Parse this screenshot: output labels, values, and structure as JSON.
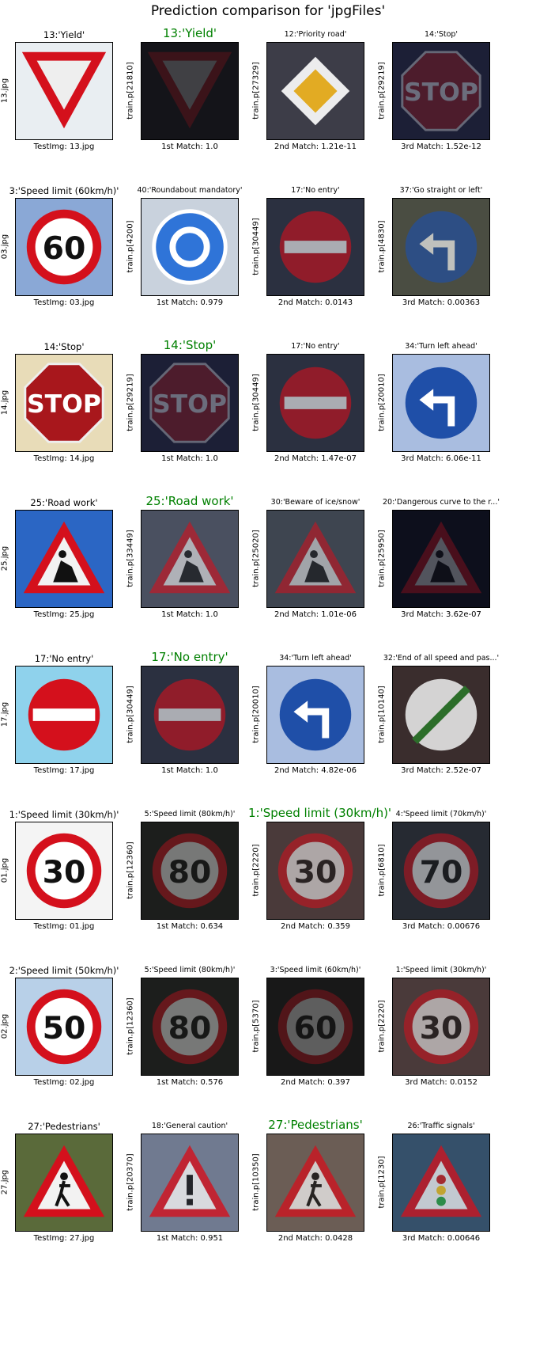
{
  "suptitle": "Prediction comparison for 'jpgFiles'",
  "chart_data": {
    "type": "table",
    "title": "Prediction comparison for 'jpgFiles'",
    "rows": [
      {
        "test_title": "13:'Yield'",
        "test_ylabel": "13.jpg",
        "test_xlabel": "TestImg: 13.jpg",
        "test_sign": "yield",
        "test_bg": "#e9eef2",
        "matches": [
          {
            "title": "13:'Yield'",
            "correct": true,
            "ylabel": "train.p[21810]",
            "xlabel": "1st Match: 1.0",
            "score": 1.0,
            "sign": "yield",
            "bg": "#141419",
            "dim": 0.2
          },
          {
            "title": "12:'Priority road'",
            "correct": false,
            "ylabel": "train.p[27329]",
            "xlabel": "2nd Match: 1.21e-11",
            "score": 1.21e-11,
            "sign": "priority",
            "bg": "#3d3d48",
            "dim": 0.9
          },
          {
            "title": "14:'Stop'",
            "correct": false,
            "ylabel": "train.p[29219]",
            "xlabel": "3rd Match: 1.52e-12",
            "score": 1.52e-12,
            "sign": "stop",
            "bg": "#1c1f36",
            "dim": 0.35
          }
        ]
      },
      {
        "test_title": "3:'Speed limit (60km/h)'",
        "test_ylabel": "03.jpg",
        "test_xlabel": "TestImg: 03.jpg",
        "test_sign": "60",
        "test_bg": "#8aa8d6",
        "matches": [
          {
            "title": "40:'Roundabout mandatory'",
            "correct": false,
            "ylabel": "train.p[4200]",
            "xlabel": "1st Match: 0.979",
            "score": 0.979,
            "sign": "roundabout",
            "bg": "#c9d2dd",
            "dim": 1.0
          },
          {
            "title": "17:'No entry'",
            "correct": false,
            "ylabel": "train.p[30449]",
            "xlabel": "2nd Match: 0.0143",
            "score": 0.0143,
            "sign": "noentry",
            "bg": "#2b3040",
            "dim": 0.6
          },
          {
            "title": "37:'Go straight or left'",
            "correct": false,
            "ylabel": "train.p[4830]",
            "xlabel": "3rd Match: 0.00363",
            "score": 0.00363,
            "sign": "straightleft",
            "bg": "#4a4d42",
            "dim": 0.65
          }
        ]
      },
      {
        "test_title": "14:'Stop'",
        "test_ylabel": "14.jpg",
        "test_xlabel": "TestImg: 14.jpg",
        "test_sign": "stop",
        "test_bg": "#e8dcb8",
        "matches": [
          {
            "title": "14:'Stop'",
            "correct": true,
            "ylabel": "train.p[29219]",
            "xlabel": "1st Match: 1.0",
            "score": 1.0,
            "sign": "stop",
            "bg": "#1c1f36",
            "dim": 0.35
          },
          {
            "title": "17:'No entry'",
            "correct": false,
            "ylabel": "train.p[30449]",
            "xlabel": "2nd Match: 1.47e-07",
            "score": 1.47e-07,
            "sign": "noentry",
            "bg": "#2b3040",
            "dim": 0.6
          },
          {
            "title": "34:'Turn left ahead'",
            "correct": false,
            "ylabel": "train.p[20010]",
            "xlabel": "3rd Match: 6.06e-11",
            "score": 6.06e-11,
            "sign": "turnleft",
            "bg": "#a9bde0",
            "dim": 1.0
          }
        ]
      },
      {
        "test_title": "25:'Road work'",
        "test_ylabel": "25.jpg",
        "test_xlabel": "TestImg: 25.jpg",
        "test_sign": "roadwork",
        "test_bg": "#2b66c4",
        "matches": [
          {
            "title": "25:'Road work'",
            "correct": true,
            "ylabel": "train.p[33449]",
            "xlabel": "1st Match: 1.0",
            "score": 1.0,
            "sign": "roadwork",
            "bg": "#4a5060",
            "dim": 0.6
          },
          {
            "title": "30:'Beware of ice/snow'",
            "correct": false,
            "ylabel": "train.p[25020]",
            "xlabel": "2nd Match: 1.01e-06",
            "score": 1.01e-06,
            "sign": "ice",
            "bg": "#3e4550",
            "dim": 0.55
          },
          {
            "title": "20:'Dangerous curve to the r...'",
            "correct": false,
            "ylabel": "train.p[25950]",
            "xlabel": "3rd Match: 3.62e-07",
            "score": 3.62e-07,
            "sign": "curve",
            "bg": "#0d0f1c",
            "dim": 0.3
          }
        ]
      },
      {
        "test_title": "17:'No entry'",
        "test_ylabel": "17.jpg",
        "test_xlabel": "TestImg: 17.jpg",
        "test_sign": "noentry",
        "test_bg": "#8fd2ec",
        "matches": [
          {
            "title": "17:'No entry'",
            "correct": true,
            "ylabel": "train.p[30449]",
            "xlabel": "1st Match: 1.0",
            "score": 1.0,
            "sign": "noentry",
            "bg": "#2b3040",
            "dim": 0.6
          },
          {
            "title": "34:'Turn left ahead'",
            "correct": false,
            "ylabel": "train.p[20010]",
            "xlabel": "2nd Match: 4.82e-06",
            "score": 4.82e-06,
            "sign": "turnleft",
            "bg": "#a9bde0",
            "dim": 1.0
          },
          {
            "title": "32:'End of all speed and pas...'",
            "correct": false,
            "ylabel": "train.p[10140]",
            "xlabel": "3rd Match: 2.52e-07",
            "score": 2.52e-07,
            "sign": "endall",
            "bg": "#3a2d2d",
            "dim": 0.85
          }
        ]
      },
      {
        "test_title": "1:'Speed limit (30km/h)'",
        "test_ylabel": "01.jpg",
        "test_xlabel": "TestImg: 01.jpg",
        "test_sign": "30",
        "test_bg": "#f4f4f4",
        "matches": [
          {
            "title": "5:'Speed limit (80km/h)'",
            "correct": false,
            "ylabel": "train.p[12360]",
            "xlabel": "1st Match: 0.634",
            "score": 0.634,
            "sign": "80",
            "bg": "#1c1e1c",
            "dim": 0.4
          },
          {
            "title": "1:'Speed limit (30km/h)'",
            "correct": true,
            "ylabel": "train.p[2220]",
            "xlabel": "2nd Match: 0.359",
            "score": 0.359,
            "sign": "30",
            "bg": "#4a3a3a",
            "dim": 0.55
          },
          {
            "title": "4:'Speed limit (70km/h)'",
            "correct": false,
            "ylabel": "train.p[6810]",
            "xlabel": "3rd Match: 0.00676",
            "score": 0.00676,
            "sign": "70",
            "bg": "#262a32",
            "dim": 0.5
          }
        ]
      },
      {
        "test_title": "2:'Speed limit (50km/h)'",
        "test_ylabel": "02.jpg",
        "test_xlabel": "TestImg: 02.jpg",
        "test_sign": "50",
        "test_bg": "#b8d0e8",
        "matches": [
          {
            "title": "5:'Speed limit (80km/h)'",
            "correct": false,
            "ylabel": "train.p[12360]",
            "xlabel": "1st Match: 0.576",
            "score": 0.576,
            "sign": "80",
            "bg": "#1c1e1c",
            "dim": 0.4
          },
          {
            "title": "3:'Speed limit (60km/h)'",
            "correct": false,
            "ylabel": "train.p[5370]",
            "xlabel": "2nd Match: 0.397",
            "score": 0.397,
            "sign": "60",
            "bg": "#181818",
            "dim": 0.3
          },
          {
            "title": "1:'Speed limit (30km/h)'",
            "correct": false,
            "ylabel": "train.p[2220]",
            "xlabel": "3rd Match: 0.0152",
            "score": 0.0152,
            "sign": "30",
            "bg": "#4a3a3a",
            "dim": 0.55
          }
        ]
      },
      {
        "test_title": "27:'Pedestrians'",
        "test_ylabel": "27.jpg",
        "test_xlabel": "TestImg: 27.jpg",
        "test_sign": "pedestrian",
        "test_bg": "#5a6a3a",
        "matches": [
          {
            "title": "18:'General caution'",
            "correct": false,
            "ylabel": "train.p[20370]",
            "xlabel": "1st Match: 0.951",
            "score": 0.951,
            "sign": "caution",
            "bg": "#707a90",
            "dim": 0.8
          },
          {
            "title": "27:'Pedestrians'",
            "correct": true,
            "ylabel": "train.p[10350]",
            "xlabel": "2nd Match: 0.0428",
            "score": 0.0428,
            "sign": "pedestrian",
            "bg": "#6b5d55",
            "dim": 0.75
          },
          {
            "title": "26:'Traffic signals'",
            "correct": false,
            "ylabel": "train.p[1230]",
            "xlabel": "3rd Match: 0.00646",
            "score": 0.00646,
            "sign": "signals",
            "bg": "#35506a",
            "dim": 0.75
          }
        ]
      }
    ]
  }
}
